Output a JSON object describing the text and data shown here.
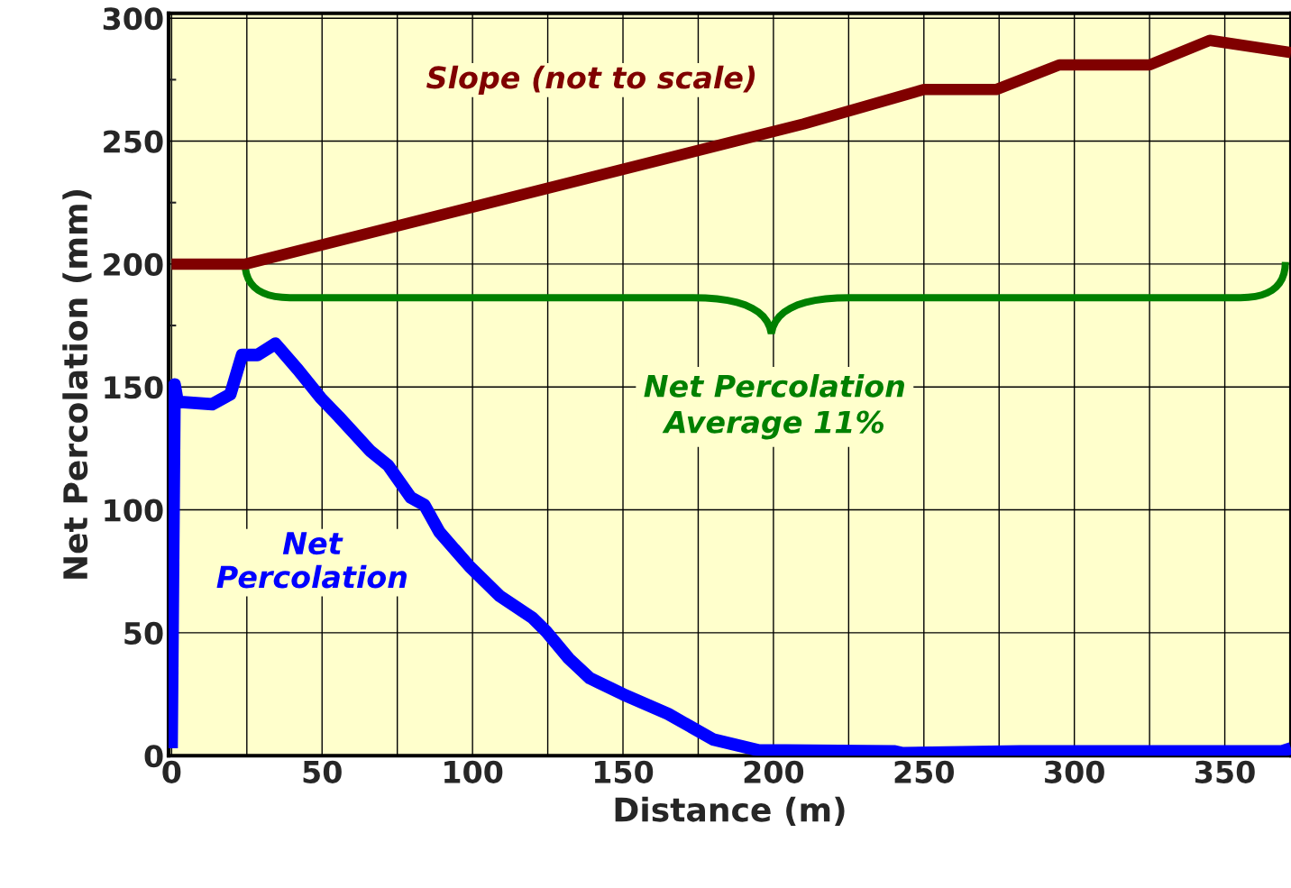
{
  "chart_data": {
    "type": "line",
    "xlabel": "Distance (m)",
    "ylabel": "Net Percolation (mm)",
    "xlim": [
      -1,
      372
    ],
    "ylim": [
      0,
      302
    ],
    "xticks": [
      0,
      {
        "value": 25,
        "label": null
      },
      50,
      {
        "value": 75,
        "label": null
      },
      100,
      {
        "value": 125,
        "label": null
      },
      150,
      {
        "value": 175,
        "label": null
      },
      200,
      {
        "value": 225,
        "label": null
      },
      250,
      {
        "value": 275,
        "label": null
      },
      300,
      {
        "value": 325,
        "label": null
      },
      350
    ],
    "yticks": [
      0,
      50,
      100,
      150,
      200,
      250,
      300
    ],
    "grid": true,
    "legend": false,
    "marker": "none",
    "line_style": "solid",
    "series": [
      {
        "name": "Slope (not to scale)",
        "color": "#800000",
        "x": [
          0,
          24.6,
          210,
          250,
          274,
          295,
          325,
          345,
          372
        ],
        "values": [
          200,
          200,
          257,
          271,
          271,
          281,
          281,
          291,
          286
        ]
      },
      {
        "name": "Net Percolation",
        "color": "#0000ff",
        "x": [
          0,
          1,
          2,
          13.5,
          19.5,
          23.4,
          28.5,
          34.5,
          42,
          49.5,
          55.5,
          66,
          72,
          79.5,
          84,
          89,
          99,
          109,
          120,
          124.5,
          132,
          139,
          150,
          165,
          180,
          195,
          240,
          243,
          282,
          369,
          372
        ],
        "values": [
          3,
          151,
          144,
          143,
          147,
          163,
          163,
          167.6,
          157,
          145.6,
          138,
          124,
          118,
          105,
          102,
          91,
          77,
          65,
          56,
          50.5,
          39.5,
          31.5,
          25,
          17,
          6.6,
          2.2,
          1.8,
          1,
          1.8,
          1.8,
          3
        ]
      }
    ],
    "annotations": [
      "Net Percolation\nAverage 11%"
    ]
  }
}
